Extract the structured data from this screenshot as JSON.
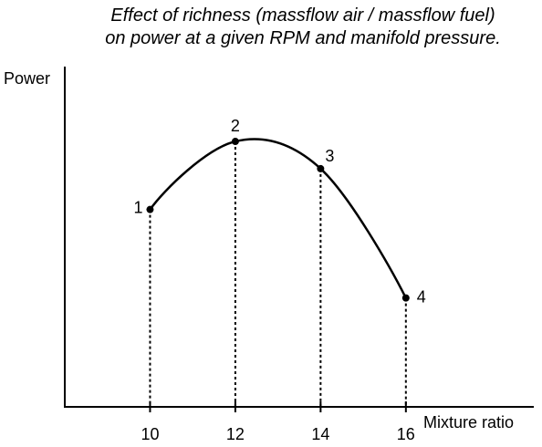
{
  "chart_data": {
    "type": "line",
    "title": [
      "Effect of richness (massflow air / massflow fuel)",
      "on power at a given RPM and manifold pressure."
    ],
    "xlabel": "Mixture ratio",
    "ylabel": "Power",
    "x_ticks": [
      "10",
      "12",
      "14",
      "16"
    ],
    "xlim": [
      8,
      19
    ],
    "ylim": [
      0,
      1
    ],
    "series": [
      {
        "points": [
          {
            "x": 10,
            "y": 0.58
          },
          {
            "x": 12,
            "y": 0.78
          },
          {
            "x": 14,
            "y": 0.7
          },
          {
            "x": 16,
            "y": 0.32
          }
        ]
      }
    ],
    "point_labels": [
      "1",
      "2",
      "3",
      "4"
    ],
    "drop_lines": true,
    "grid": false,
    "colors": {
      "line": "#000000",
      "background": "#ffffff"
    }
  }
}
